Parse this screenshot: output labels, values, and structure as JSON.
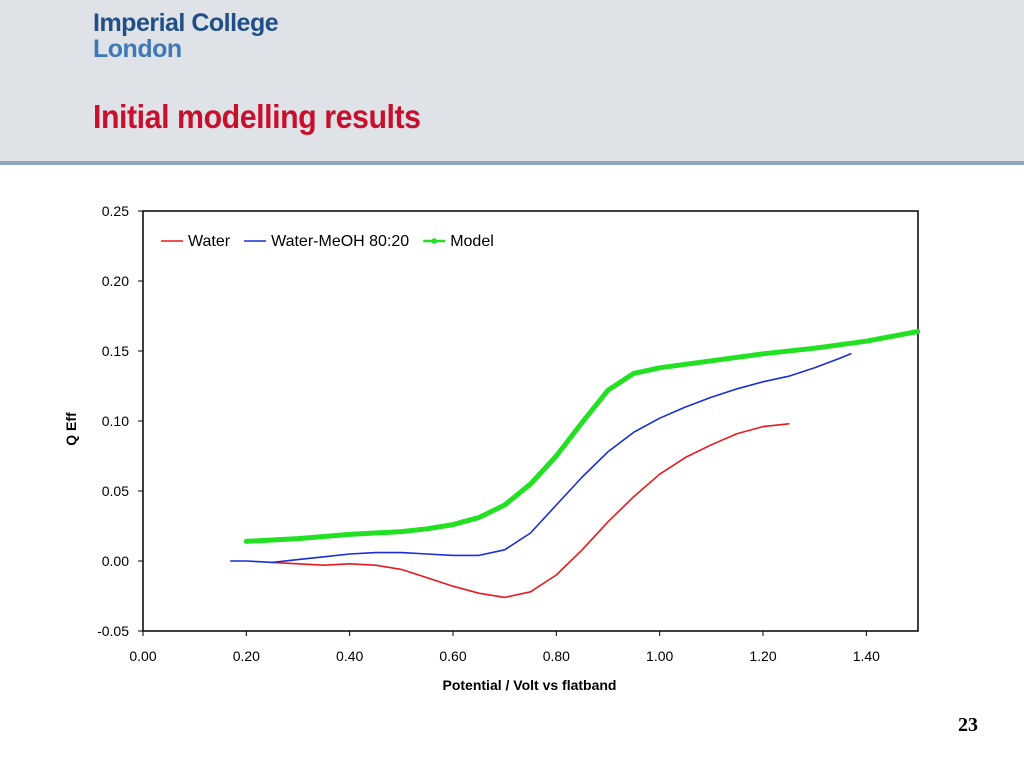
{
  "header": {
    "logo_line1": "Imperial College",
    "logo_line2": "London",
    "title": "Initial modelling results"
  },
  "page_number": "23",
  "colors": {
    "water": "#e8191d",
    "water_meoh": "#1a2dd6",
    "model": "#22e022",
    "title": "#c8102e",
    "logo": "#2c5a8c"
  },
  "chart_data": {
    "type": "line",
    "xlabel": "Potential / Volt vs flatband",
    "ylabel": "Q Eff",
    "xlim": [
      0.0,
      1.5
    ],
    "ylim": [
      -0.05,
      0.25
    ],
    "x_ticks": [
      "0.00",
      "0.20",
      "0.40",
      "0.60",
      "0.80",
      "1.00",
      "1.20",
      "1.40"
    ],
    "y_ticks": [
      "-0.05",
      "0.00",
      "0.05",
      "0.10",
      "0.15",
      "0.20",
      "0.25"
    ],
    "legend_position": "top-left",
    "grid": false,
    "series": [
      {
        "name": "Water",
        "color": "#e8191d",
        "x": [
          0.25,
          0.3,
          0.35,
          0.4,
          0.45,
          0.5,
          0.55,
          0.6,
          0.65,
          0.7,
          0.75,
          0.8,
          0.85,
          0.9,
          0.95,
          1.0,
          1.05,
          1.1,
          1.15,
          1.2,
          1.25
        ],
        "y": [
          -0.001,
          -0.002,
          -0.003,
          -0.002,
          -0.003,
          -0.006,
          -0.012,
          -0.018,
          -0.023,
          -0.026,
          -0.022,
          -0.01,
          0.008,
          0.028,
          0.046,
          0.062,
          0.074,
          0.083,
          0.091,
          0.096,
          0.098
        ]
      },
      {
        "name": "Water-MeOH 80:20",
        "color": "#1a2dd6",
        "x": [
          0.17,
          0.2,
          0.25,
          0.3,
          0.35,
          0.4,
          0.45,
          0.5,
          0.55,
          0.6,
          0.65,
          0.7,
          0.75,
          0.8,
          0.85,
          0.9,
          0.95,
          1.0,
          1.05,
          1.1,
          1.15,
          1.2,
          1.25,
          1.3,
          1.35,
          1.37
        ],
        "y": [
          0.0,
          0.0,
          -0.001,
          0.001,
          0.003,
          0.005,
          0.006,
          0.006,
          0.005,
          0.004,
          0.004,
          0.008,
          0.02,
          0.04,
          0.06,
          0.078,
          0.092,
          0.102,
          0.11,
          0.117,
          0.123,
          0.128,
          0.132,
          0.138,
          0.145,
          0.148
        ]
      },
      {
        "name": "Model",
        "color": "#22e022",
        "x": [
          0.2,
          0.3,
          0.4,
          0.5,
          0.55,
          0.6,
          0.65,
          0.7,
          0.75,
          0.8,
          0.85,
          0.9,
          0.95,
          1.0,
          1.1,
          1.2,
          1.3,
          1.4,
          1.5
        ],
        "y": [
          0.014,
          0.016,
          0.019,
          0.021,
          0.023,
          0.026,
          0.031,
          0.04,
          0.055,
          0.075,
          0.099,
          0.122,
          0.134,
          0.138,
          0.143,
          0.148,
          0.152,
          0.157,
          0.164
        ]
      }
    ]
  }
}
